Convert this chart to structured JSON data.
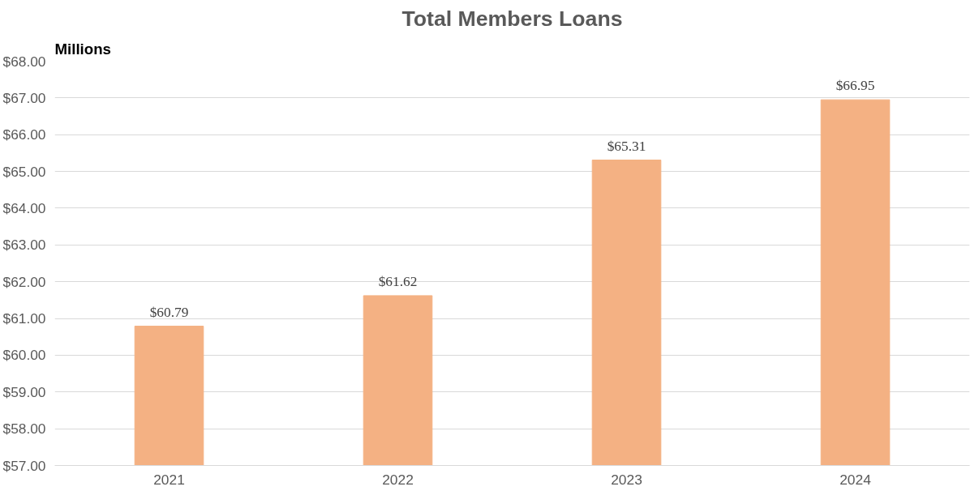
{
  "chart_data": {
    "type": "bar",
    "title": "Total Members Loans",
    "ylabel": "Millions",
    "categories": [
      "2021",
      "2022",
      "2023",
      "2024"
    ],
    "values": [
      60.79,
      61.62,
      65.31,
      66.95
    ],
    "color": "#f4b183",
    "value_labels": [
      "$60.79",
      "$61.62",
      "$65.31",
      "$66.95"
    ],
    "ylim": [
      57,
      68
    ],
    "yticks": [
      {
        "value": 57,
        "label": "$57.00"
      },
      {
        "value": 58,
        "label": "$58.00"
      },
      {
        "value": 59,
        "label": "$59.00"
      },
      {
        "value": 60,
        "label": "$60.00"
      },
      {
        "value": 61,
        "label": "$61.00"
      },
      {
        "value": 62,
        "label": "$62.00"
      },
      {
        "value": 63,
        "label": "$63.00"
      },
      {
        "value": 64,
        "label": "$64.00"
      },
      {
        "value": 65,
        "label": "$65.00"
      },
      {
        "value": 66,
        "label": "$66.00"
      },
      {
        "value": 67,
        "label": "$67.00"
      },
      {
        "value": 68,
        "label": "$68.00"
      }
    ],
    "grid": "y"
  }
}
